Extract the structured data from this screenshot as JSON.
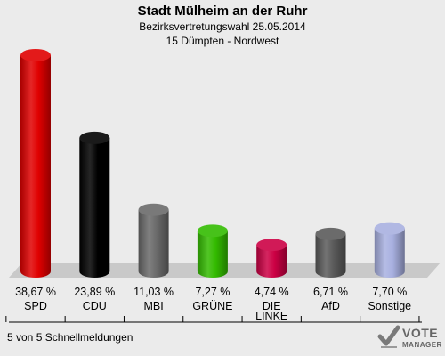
{
  "header": {
    "title": "Stadt Mülheim an der Ruhr",
    "subtitle": "Bezirksvertretungswahl 25.05.2014",
    "district": "15 Dümpten - Nordwest"
  },
  "chart_data": {
    "type": "bar",
    "categories": [
      "SPD",
      "CDU",
      "MBI",
      "GRÜNE",
      "DIE LINKE",
      "AfD",
      "Sonstige"
    ],
    "category_lines": [
      [
        "SPD"
      ],
      [
        "CDU"
      ],
      [
        "MBI"
      ],
      [
        "GRÜNE"
      ],
      [
        "DIE",
        "LINKE"
      ],
      [
        "AfD"
      ],
      [
        "Sonstige"
      ]
    ],
    "values": [
      38.67,
      23.89,
      11.03,
      7.27,
      4.74,
      6.71,
      7.7
    ],
    "value_labels": [
      "38,67 %",
      "23,89 %",
      "11,03 %",
      "7,27 %",
      "4,74 %",
      "6,71 %",
      "7,70 %"
    ],
    "colors": [
      "#e00000",
      "#000000",
      "#6a6a6a",
      "#33bb00",
      "#cc0044",
      "#5a5a5a",
      "#a8b0e0"
    ],
    "ylim": [
      0,
      40
    ]
  },
  "footer": {
    "text": "5 von 5 Schnellmeldungen"
  },
  "logo": {
    "line1": "VOTE",
    "line2": "MANAGER",
    "icon": "check-mark-icon"
  }
}
